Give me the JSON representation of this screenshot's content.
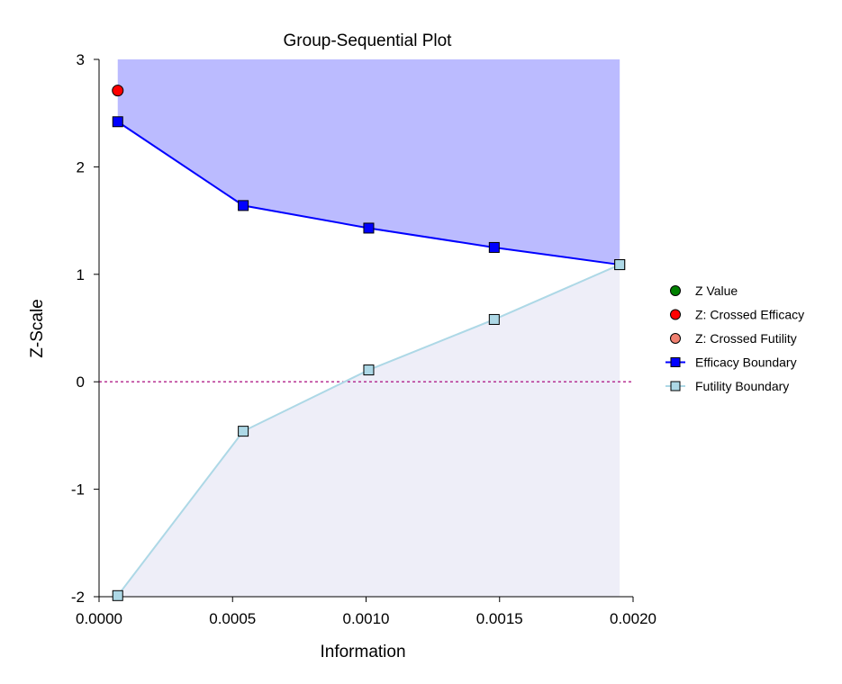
{
  "chart_data": {
    "type": "line",
    "title": "Group-Sequential Plot",
    "xlabel": "Information",
    "ylabel": "Z-Scale",
    "xlim": [
      0.0,
      0.002
    ],
    "ylim": [
      -2,
      3
    ],
    "xticks": [
      "0.0000",
      "0.0005",
      "0.0010",
      "0.0015",
      "0.0020"
    ],
    "yticks": [
      "-2",
      "-1",
      "0",
      "1",
      "2",
      "3"
    ],
    "grid": false,
    "reference_line": {
      "y": 0,
      "style": "dotted"
    },
    "legend_position": "right",
    "series": [
      {
        "name": "Z Value",
        "kind": "point",
        "color": "#008000",
        "x": [],
        "y": []
      },
      {
        "name": "Z: Crossed Efficacy",
        "kind": "point",
        "color": "#ff0000",
        "x": [
          7e-05
        ],
        "y": [
          2.71
        ]
      },
      {
        "name": "Z: Crossed Futility",
        "kind": "point",
        "color": "#f08070",
        "x": [],
        "y": []
      },
      {
        "name": "Efficacy Boundary",
        "kind": "line",
        "color": "#0000ff",
        "marker_color": "#0000ff",
        "x": [
          7e-05,
          0.00054,
          0.00101,
          0.00148,
          0.00195
        ],
        "y": [
          2.42,
          1.64,
          1.43,
          1.25,
          1.09
        ]
      },
      {
        "name": "Futility Boundary",
        "kind": "line",
        "color": "#add8e6",
        "marker_color": "#add8e6",
        "x": [
          7e-05,
          0.00054,
          0.00101,
          0.00148,
          0.00195
        ],
        "y": [
          -1.99,
          -0.46,
          0.11,
          0.58,
          1.09
        ]
      }
    ],
    "regions": [
      {
        "name": "efficacy-region",
        "color": "#bbbbff",
        "bounded_by": "Efficacy Boundary",
        "to": "top"
      },
      {
        "name": "futility-region",
        "color": "#eeeef8",
        "bounded_by": "Futility Boundary",
        "to": "bottom"
      }
    ]
  }
}
